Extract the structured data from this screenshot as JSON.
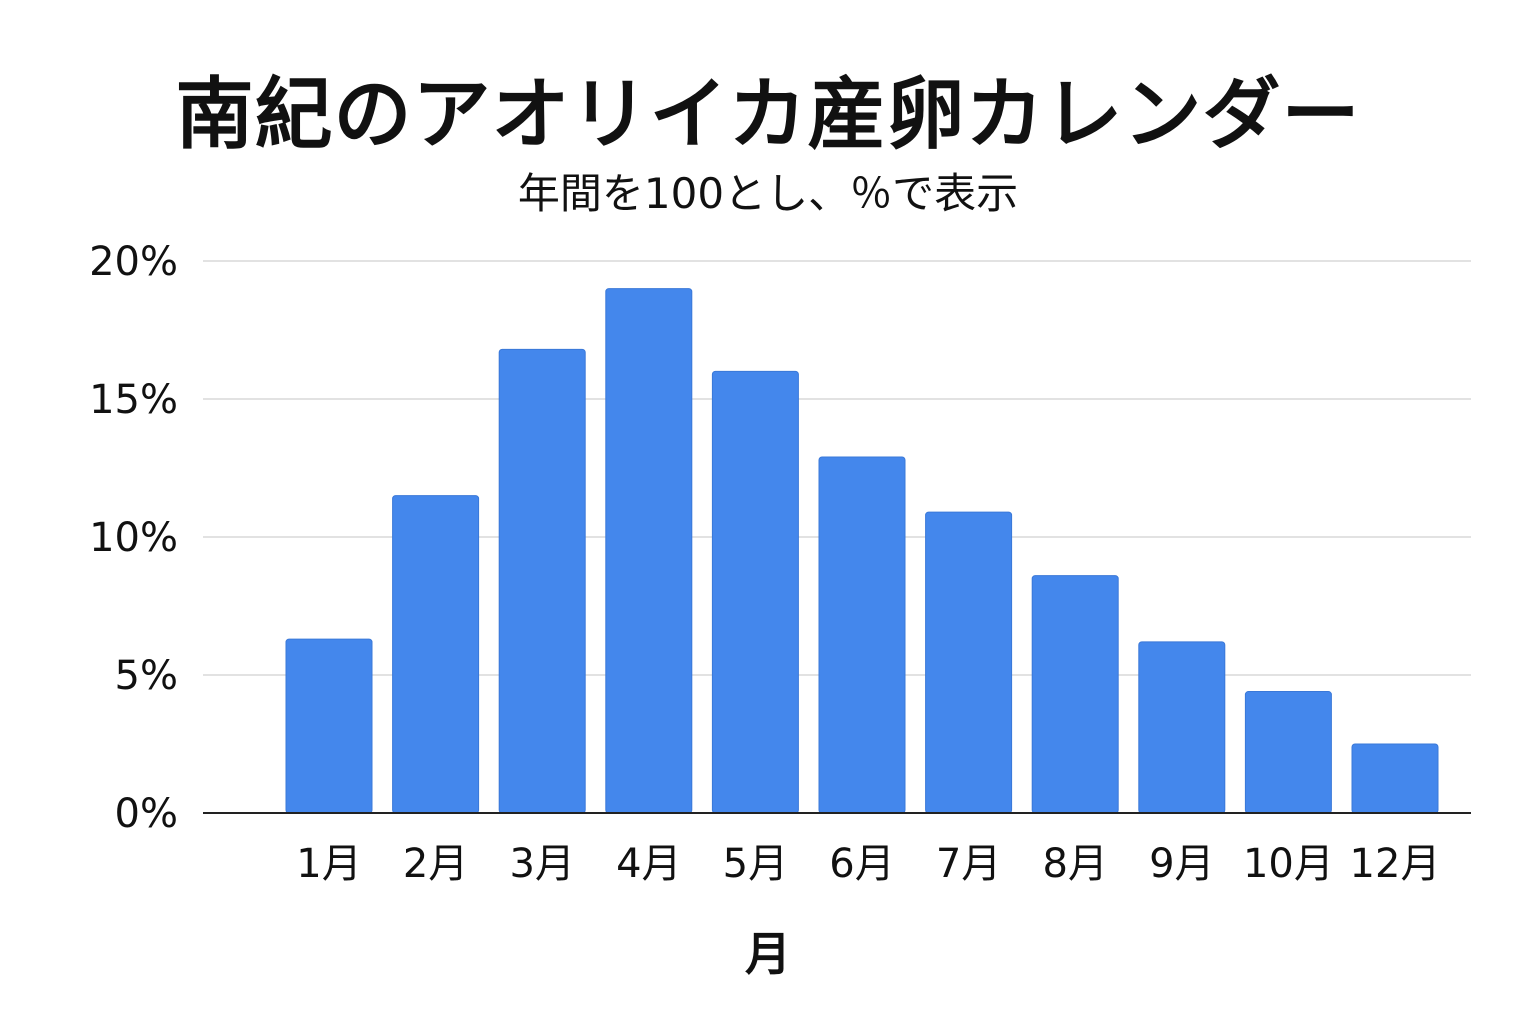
{
  "chart_data": {
    "type": "bar",
    "title": "南紀のアオリイカ産卵カレンダー",
    "subtitle": "年間を100とし、％で表示",
    "xlabel": "月",
    "ylabel": "",
    "categories": [
      "1月",
      "2月",
      "3月",
      "4月",
      "5月",
      "6月",
      "7月",
      "8月",
      "9月",
      "10月",
      "12月"
    ],
    "values": [
      6.3,
      11.5,
      16.8,
      19.0,
      16.0,
      12.9,
      10.9,
      8.6,
      6.2,
      4.4,
      2.5
    ],
    "ylim": [
      0,
      20
    ],
    "yticks": [
      "0%",
      "5%",
      "10%",
      "15%",
      "20%"
    ],
    "ytick_values": [
      0,
      5,
      10,
      15,
      20
    ],
    "grid": true,
    "bar_color": "#4487EC",
    "grid_color": "#D9D9D9",
    "axis_color": "#222222"
  }
}
